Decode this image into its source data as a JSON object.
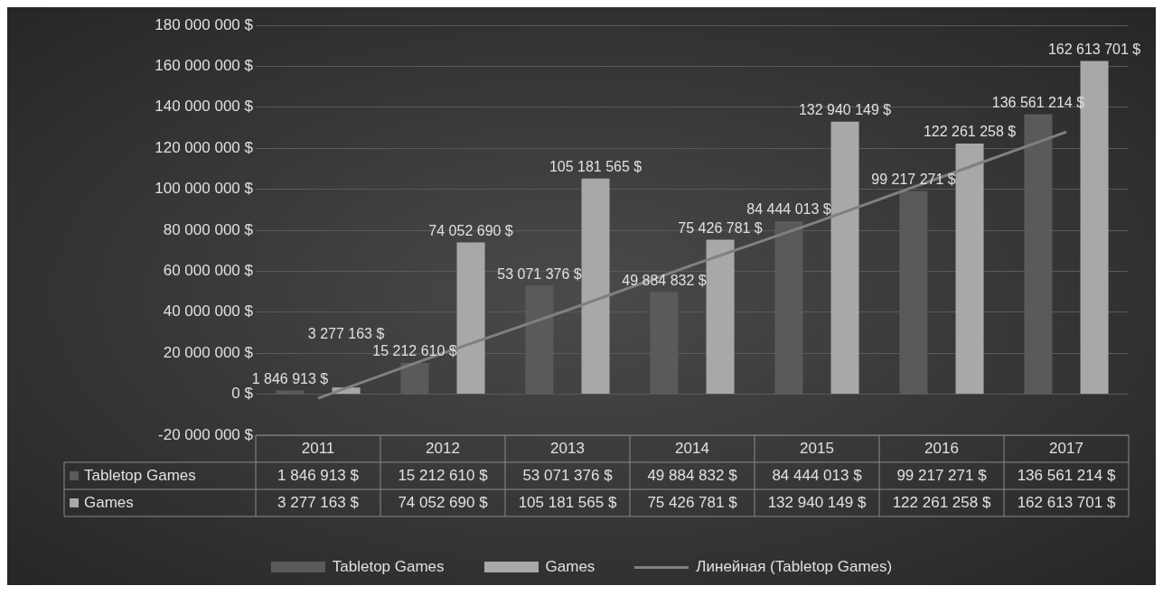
{
  "chart_data": {
    "type": "bar",
    "categories": [
      "2011",
      "2012",
      "2013",
      "2014",
      "2015",
      "2016",
      "2017"
    ],
    "series": [
      {
        "name": "Tabletop Games",
        "color": "#5a5a5a",
        "values": [
          1846913,
          15212610,
          53071376,
          49884832,
          84444013,
          99217271,
          136561214
        ],
        "value_labels": [
          "1 846 913 $",
          "15 212 610 $",
          "53 071 376 $",
          "49 884 832 $",
          "84 444 013 $",
          "99 217 271 $",
          "136 561 214 $"
        ]
      },
      {
        "name": "Games",
        "color": "#a8a8a8",
        "values": [
          3277163,
          74052690,
          105181565,
          75426781,
          132940149,
          122261258,
          162613701
        ],
        "value_labels": [
          "3 277 163 $",
          "74 052 690 $",
          "105 181 565 $",
          "75 426 781 $",
          "132 940 149 $",
          "122 261 258 $",
          "162 613 701 $"
        ]
      },
      {
        "name": "Линейная (Tabletop Games)",
        "type": "line",
        "color": "#808080",
        "marker": "none",
        "values": [
          -2000000,
          20000000,
          41000000,
          63000000,
          84000000,
          106000000,
          128000000
        ]
      }
    ],
    "ylim": [
      -20000000,
      180000000
    ],
    "yticks": [
      {
        "value": -20000000,
        "label": "-20 000 000 $"
      },
      {
        "value": 0,
        "label": "0 $"
      },
      {
        "value": 20000000,
        "label": "20 000 000 $"
      },
      {
        "value": 40000000,
        "label": "40 000 000 $"
      },
      {
        "value": 60000000,
        "label": "60 000 000 $"
      },
      {
        "value": 80000000,
        "label": "80 000 000 $"
      },
      {
        "value": 100000000,
        "label": "100 000 000 $"
      },
      {
        "value": 120000000,
        "label": "120 000 000 $"
      },
      {
        "value": 140000000,
        "label": "140 000 000 $"
      },
      {
        "value": 160000000,
        "label": "160 000 000 $"
      },
      {
        "value": 180000000,
        "label": "180 000 000 $"
      }
    ],
    "grid": "y",
    "legend": "bottom"
  }
}
